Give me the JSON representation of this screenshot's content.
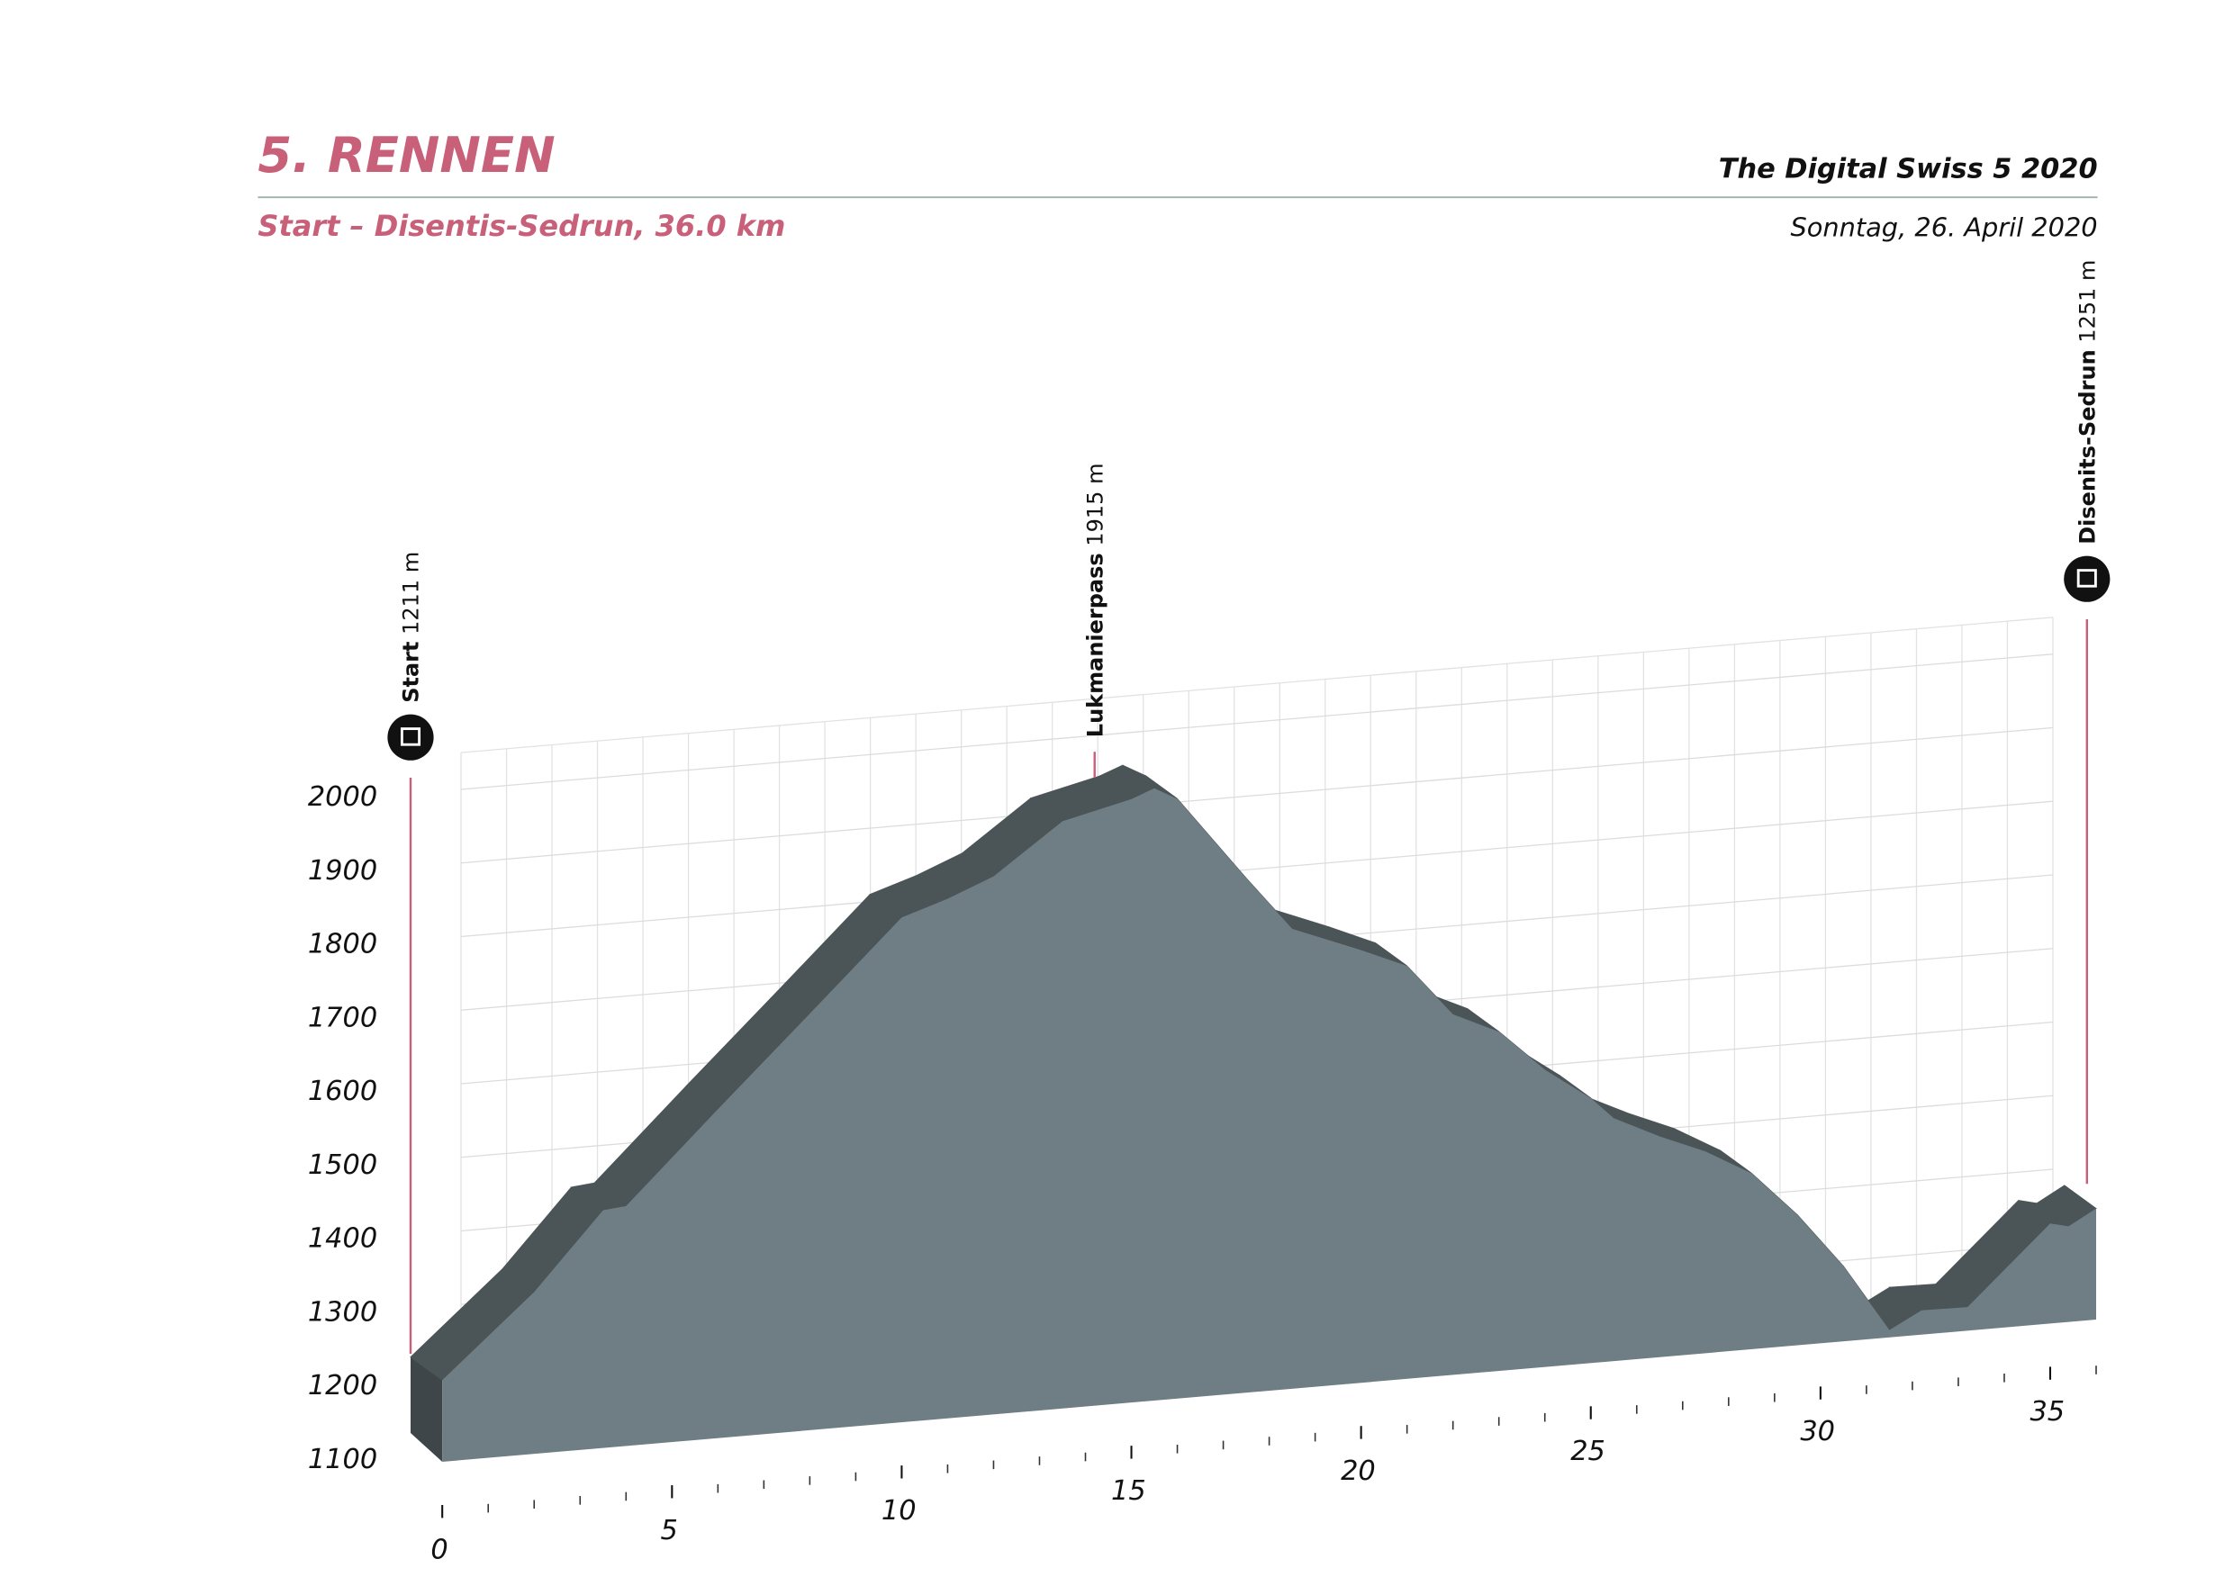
{
  "chart_data": {
    "type": "profile",
    "title": "5. RENNEN",
    "subtitle": "Start – Disentis-Sedrun, 36.0 km",
    "event": "The Digital Swiss 5 2020",
    "date": "Sonntag, 26. April 2020",
    "x": [
      0,
      2,
      3.5,
      4,
      6,
      8,
      10,
      11,
      12,
      13.5,
      15,
      15.5,
      16,
      17.5,
      18.5,
      20,
      21,
      22,
      23,
      24,
      25,
      25.5,
      26.5,
      27.5,
      28.5,
      29.5,
      30.5,
      31.5,
      32.2,
      33.2,
      35,
      35.4,
      36
    ],
    "values": [
      1211,
      1320,
      1423,
      1426,
      1547,
      1666,
      1786,
      1806,
      1831,
      1898,
      1920,
      1932,
      1915,
      1799,
      1725,
      1688,
      1661,
      1590,
      1561,
      1504,
      1460,
      1430,
      1400,
      1374,
      1339,
      1277,
      1202,
      1110,
      1133,
      1132,
      1236,
      1230,
      1251
    ],
    "color": "#6e7e84",
    "top_color": "#4b5457",
    "side_color": "#3f4649",
    "xlim": [
      0,
      36
    ],
    "xticks": [
      0,
      5,
      10,
      15,
      20,
      25,
      30,
      35
    ],
    "ylim": [
      1100,
      2050
    ],
    "yticks": [
      1100,
      1200,
      1300,
      1400,
      1500,
      1600,
      1700,
      1800,
      1900,
      2000
    ],
    "grid": true,
    "annotations": [
      {
        "label": "Start",
        "detail": "1211 m",
        "x": 0
      },
      {
        "label": "Lukmanierpass",
        "detail": "1915 m",
        "x": 14.2
      },
      {
        "label": "Disenits-Sedrun",
        "detail": "1251 m",
        "x": 35.8
      }
    ]
  }
}
